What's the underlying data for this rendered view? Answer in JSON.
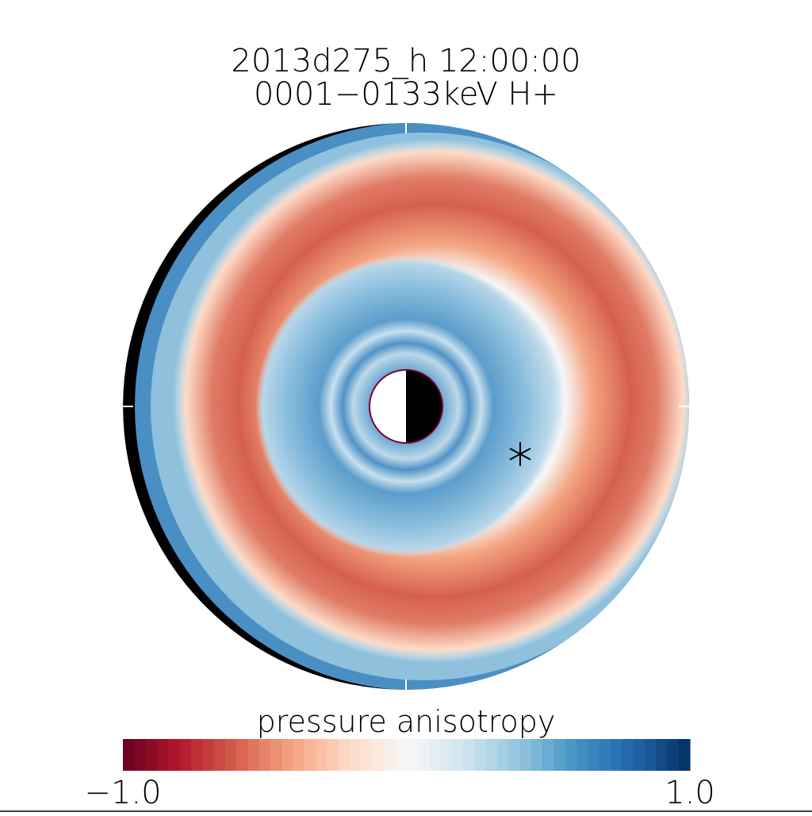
{
  "chart_data": {
    "type": "polar-map",
    "title": "2013d275_h  12:00:00",
    "subtitle": "0001−0133keV H+",
    "colorbar_label": "pressure anisotropy",
    "clim": [
      -1,
      1
    ],
    "cticks": [
      {
        "value": -1,
        "label": "−1.0"
      },
      {
        "value": 1,
        "label": "1.0"
      }
    ],
    "colormap": [
      "#67001f",
      "#b2182b",
      "#d6604d",
      "#f4a582",
      "#fddbc7",
      "#f7f7f7",
      "#d1e5f0",
      "#92c5de",
      "#4393c3",
      "#2166ac",
      "#053061"
    ]
  }
}
